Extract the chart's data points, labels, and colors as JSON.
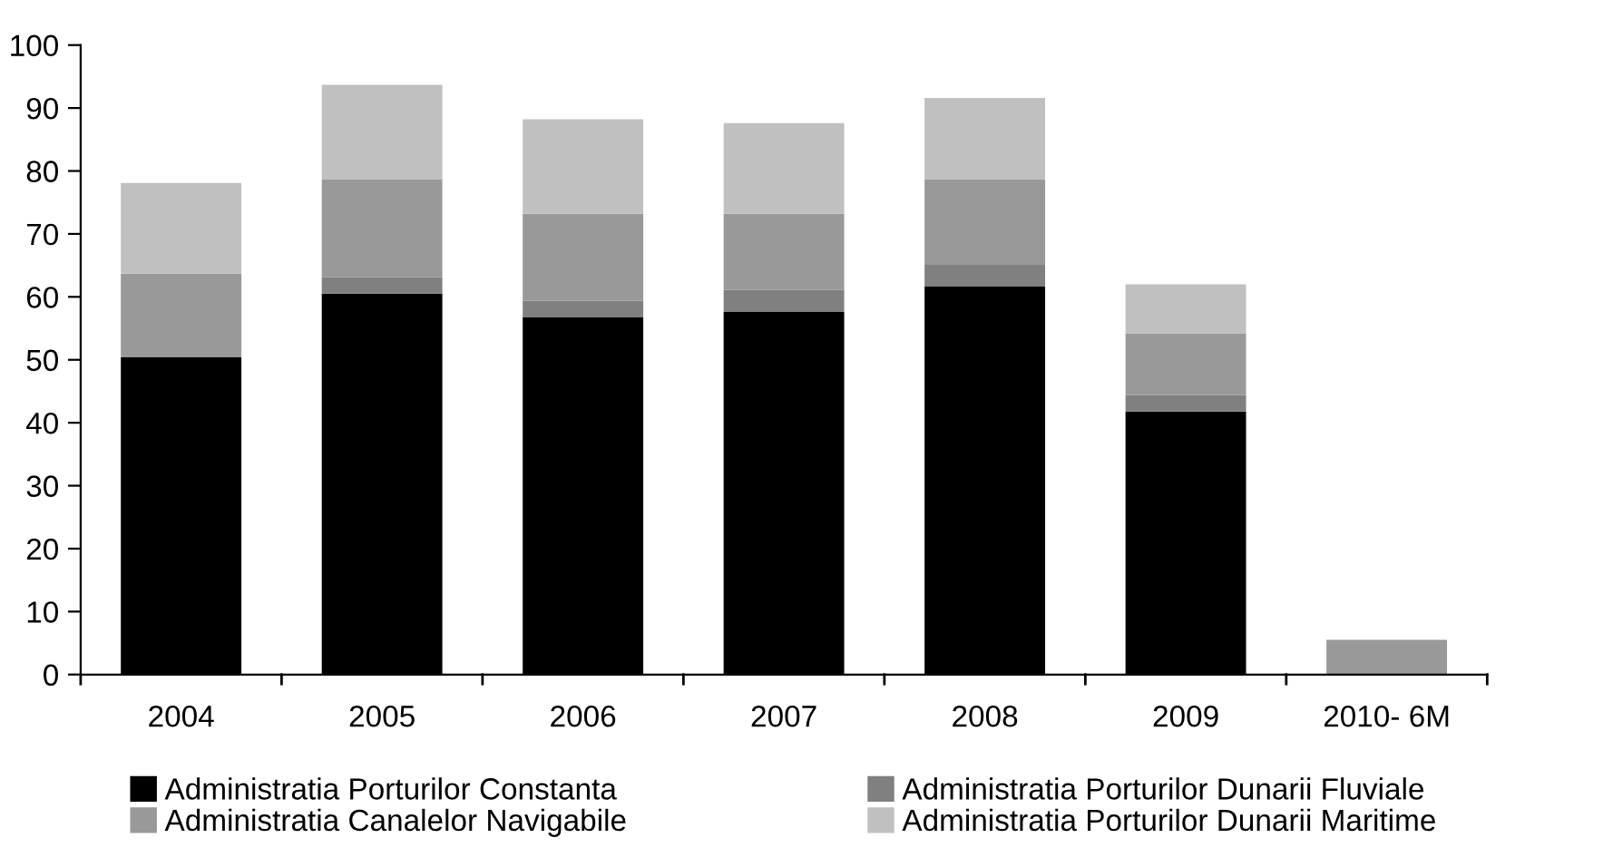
{
  "chart_data": {
    "type": "bar",
    "stacked": true,
    "categories": [
      "2004",
      "2005",
      "2006",
      "2007",
      "2008",
      "2009",
      "2010- 6M"
    ],
    "series": [
      {
        "name": "Administratia Porturilor Constanta",
        "color": "#000000",
        "values": [
          50.4,
          60.5,
          56.8,
          57.6,
          61.7,
          41.8,
          0
        ]
      },
      {
        "name": "Administratia Porturilor Dunarii Fluviale",
        "color": "#808080",
        "values": [
          0,
          2.6,
          2.6,
          3.5,
          3.4,
          2.6,
          0
        ]
      },
      {
        "name": "Administratia Canalelor Navigabile",
        "color": "#999999",
        "values": [
          13.3,
          15.6,
          13.8,
          12.1,
          13.6,
          9.8,
          5.5
        ]
      },
      {
        "name": "Administratia Porturilor Dunarii Maritime",
        "color": "#c0c0c0",
        "values": [
          14.4,
          15.0,
          15.0,
          14.4,
          12.9,
          7.8,
          0
        ]
      }
    ],
    "ylim": [
      0,
      100
    ],
    "yticks": [
      0,
      10,
      20,
      30,
      40,
      50,
      60,
      70,
      80,
      90,
      100
    ],
    "grid": false,
    "legend": "bottom"
  }
}
